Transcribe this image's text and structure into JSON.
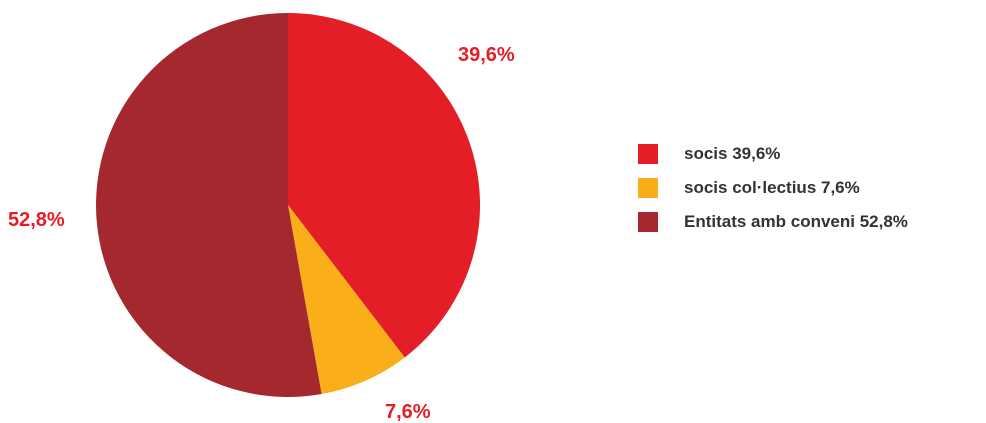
{
  "chart_data": {
    "type": "pie",
    "title": "",
    "slices": [
      {
        "name": "socis",
        "value": 39.6,
        "label": "39,6%",
        "color": "#e31e26"
      },
      {
        "name": "socis col·lectius",
        "value": 7.6,
        "label": "7,6%",
        "color": "#f9ae1a"
      },
      {
        "name": "Entitats amb conveni",
        "value": 52.8,
        "label": "52,8%",
        "color": "#a5282f"
      }
    ],
    "legend": {
      "placement": "right",
      "items": [
        {
          "text": "socis 39,6%",
          "color": "#e31e26"
        },
        {
          "text": "socis col·lectius 7,6%",
          "color": "#f9ae1a"
        },
        {
          "text": "Entitats amb conveni 52,8%",
          "color": "#a5282f"
        }
      ]
    },
    "label_color": "#e31e26"
  }
}
